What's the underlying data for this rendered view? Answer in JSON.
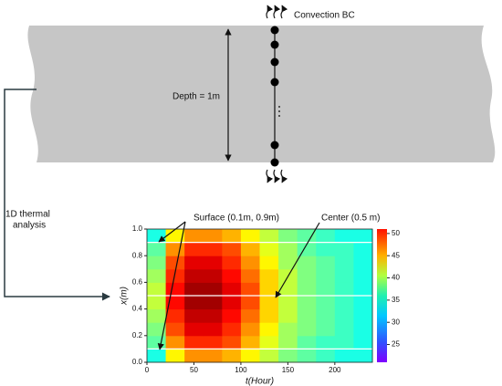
{
  "labels": {
    "convection": "Convection BC",
    "depth": "Depth = 1m",
    "analysis_line1": "1D thermal",
    "analysis_line2": "analysis",
    "surface": "Surface (0.1m, 0.9m)",
    "center": "Center (0.5 m)"
  },
  "plot": {
    "xlabel": "t(Hour)",
    "ylabel": "x(m)",
    "xlim": [
      0,
      240
    ],
    "xticks": [
      0,
      50,
      100,
      150,
      200
    ],
    "ylim": [
      0,
      1
    ],
    "yticks": [
      {
        "value": 0,
        "label": "0.0"
      },
      0.2,
      0.4,
      0.6,
      0.8,
      {
        "value": 1,
        "label": "1.0"
      }
    ],
    "clim": [
      21,
      51
    ],
    "cticks": [
      25,
      30,
      35,
      40,
      45,
      50
    ],
    "probe_x": [
      0.1,
      0.5,
      0.9
    ],
    "t": [
      10,
      30,
      50,
      70,
      90,
      110,
      130,
      150,
      170,
      190,
      210,
      230
    ],
    "x": [
      0.05,
      0.15,
      0.25,
      0.35,
      0.45,
      0.55,
      0.65,
      0.75,
      0.85,
      0.95
    ],
    "values": [
      [
        33,
        40,
        43,
        43,
        42,
        40,
        38,
        36,
        35,
        34,
        33,
        33
      ],
      [
        35,
        43,
        46,
        46,
        45,
        42,
        39,
        37,
        35,
        34,
        34,
        33
      ],
      [
        36,
        45,
        48,
        48,
        46,
        43,
        40,
        37,
        36,
        35,
        34,
        33
      ],
      [
        37,
        46,
        49,
        49,
        47,
        44,
        41,
        38,
        36,
        35,
        34,
        33
      ],
      [
        38,
        47,
        50,
        50,
        48,
        45,
        41,
        38,
        36,
        35,
        34,
        33
      ],
      [
        38,
        47,
        50,
        50,
        48,
        45,
        41,
        38,
        36,
        35,
        34,
        33
      ],
      [
        37,
        46,
        49,
        49,
        47,
        44,
        41,
        38,
        36,
        35,
        34,
        33
      ],
      [
        36,
        45,
        48,
        48,
        46,
        43,
        40,
        37,
        36,
        35,
        34,
        33
      ],
      [
        35,
        43,
        46,
        46,
        45,
        42,
        39,
        37,
        35,
        34,
        34,
        33
      ],
      [
        33,
        40,
        43,
        43,
        42,
        40,
        38,
        36,
        35,
        34,
        33,
        33
      ]
    ]
  }
}
